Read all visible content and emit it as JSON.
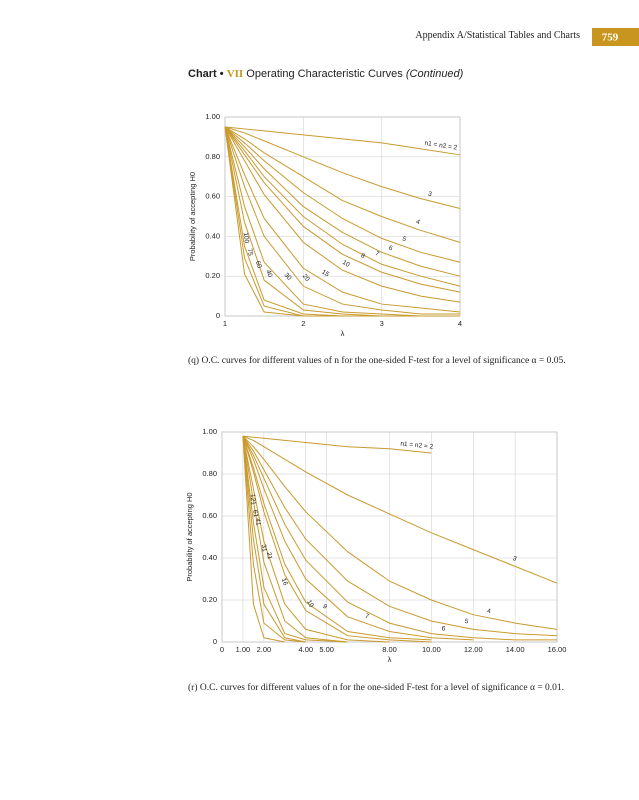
{
  "header": {
    "running_head": "Appendix A/Statistical Tables and Charts",
    "page_number": "759"
  },
  "section_title": {
    "label": "Chart •",
    "number": "VII",
    "title": "Operating Characteristic Curves",
    "note": "(Continued)"
  },
  "chart_data": [
    {
      "type": "line",
      "caption": "(q) O.C. curves for different values of n for the one-sided F-test for a level of significance α = 0.05.",
      "xlabel": "λ",
      "ylabel": "Probability of accepting H0",
      "color": "#c99a2e",
      "grid": true,
      "xlim": [
        1,
        4
      ],
      "ylim": [
        0,
        1
      ],
      "xticks": [
        1,
        2,
        3,
        4
      ],
      "yticks": [
        0,
        {
          "value": 0.2,
          "label": "0.20"
        },
        {
          "value": 0.4,
          "label": "0.40"
        },
        {
          "value": 0.6,
          "label": "0.60"
        },
        {
          "value": 0.8,
          "label": "0.80"
        },
        {
          "value": 1,
          "label": "1.00"
        }
      ],
      "x": [
        1,
        1.25,
        1.5,
        2,
        2.5,
        3,
        3.5,
        4
      ],
      "series": [
        {
          "name": "n1 = n2 = 2",
          "values": [
            0.95,
            0.94,
            0.93,
            0.91,
            0.89,
            0.87,
            0.84,
            0.81
          ]
        },
        {
          "name": "3",
          "values": [
            0.95,
            0.92,
            0.88,
            0.8,
            0.72,
            0.65,
            0.59,
            0.54
          ]
        },
        {
          "name": "4",
          "values": [
            0.95,
            0.89,
            0.82,
            0.7,
            0.58,
            0.5,
            0.43,
            0.37
          ]
        },
        {
          "name": "5",
          "values": [
            0.95,
            0.87,
            0.78,
            0.62,
            0.49,
            0.39,
            0.32,
            0.27
          ]
        },
        {
          "name": "6",
          "values": [
            0.95,
            0.85,
            0.74,
            0.55,
            0.42,
            0.32,
            0.25,
            0.2
          ]
        },
        {
          "name": "7",
          "values": [
            0.95,
            0.83,
            0.7,
            0.5,
            0.36,
            0.26,
            0.2,
            0.15
          ]
        },
        {
          "name": "8",
          "values": [
            0.95,
            0.81,
            0.67,
            0.45,
            0.31,
            0.22,
            0.16,
            0.12
          ]
        },
        {
          "name": "10",
          "values": [
            0.95,
            0.78,
            0.61,
            0.37,
            0.23,
            0.15,
            0.1,
            0.07
          ]
        },
        {
          "name": "15",
          "values": [
            0.95,
            0.71,
            0.49,
            0.24,
            0.12,
            0.06,
            0.04,
            0.02
          ]
        },
        {
          "name": "20",
          "values": [
            0.95,
            0.65,
            0.4,
            0.15,
            0.06,
            0.03,
            0.01,
            0.01
          ]
        },
        {
          "name": "30",
          "values": [
            0.95,
            0.55,
            0.27,
            0.06,
            0.02,
            0.01,
            0,
            0
          ]
        },
        {
          "name": "40",
          "values": [
            0.95,
            0.47,
            0.18,
            0.03,
            0.01,
            0,
            0,
            0
          ]
        },
        {
          "name": "60",
          "values": [
            0.95,
            0.35,
            0.08,
            0.01,
            0,
            0,
            0,
            0
          ]
        },
        {
          "name": "75",
          "values": [
            0.95,
            0.29,
            0.05,
            0,
            0,
            0,
            0,
            0
          ]
        },
        {
          "name": "100",
          "values": [
            0.95,
            0.21,
            0.02,
            0,
            0,
            0,
            0,
            0
          ]
        }
      ]
    },
    {
      "type": "line",
      "caption": "(r) O.C. curves for different values of n for the one-sided F-test for a level of significance α = 0.01.",
      "xlabel": "λ",
      "ylabel": "Probability of accepting H0",
      "color": "#c99a2e",
      "grid": true,
      "xlim": [
        0,
        16
      ],
      "ylim": [
        0,
        1
      ],
      "xticks": [
        0,
        {
          "value": 1,
          "label": "1.00"
        },
        {
          "value": 2,
          "label": "2.00"
        },
        {
          "value": 4,
          "label": "4.00"
        },
        {
          "value": 5,
          "label": "5.00"
        },
        {
          "value": 8,
          "label": "8.00"
        },
        {
          "value": 10,
          "label": "10.00"
        },
        {
          "value": 12,
          "label": "12.00"
        },
        {
          "value": 14,
          "label": "14.00"
        },
        {
          "value": 16,
          "label": "16.00"
        }
      ],
      "yticks": [
        0,
        {
          "value": 0.2,
          "label": "0.20"
        },
        {
          "value": 0.4,
          "label": "0.40"
        },
        {
          "value": 0.6,
          "label": "0.60"
        },
        {
          "value": 0.8,
          "label": "0.80"
        },
        {
          "value": 1,
          "label": "1.00"
        }
      ],
      "x": [
        1,
        1.5,
        2,
        3,
        4,
        6,
        8,
        10,
        12,
        14,
        16
      ],
      "series": [
        {
          "name": "n1 = n2 = 2",
          "values": [
            0.98,
            0.975,
            0.97,
            0.96,
            0.95,
            0.93,
            0.92,
            0.9,
            null,
            null,
            null
          ]
        },
        {
          "name": "3",
          "values": [
            0.98,
            0.96,
            0.93,
            0.87,
            0.81,
            0.7,
            0.61,
            0.52,
            0.44,
            0.36,
            0.28
          ]
        },
        {
          "name": "4",
          "values": [
            0.98,
            0.93,
            0.87,
            0.74,
            0.62,
            0.43,
            0.29,
            0.2,
            0.13,
            0.09,
            0.06
          ]
        },
        {
          "name": "5",
          "values": [
            0.98,
            0.91,
            0.82,
            0.64,
            0.49,
            0.29,
            0.17,
            0.1,
            0.06,
            0.04,
            0.03
          ]
        },
        {
          "name": "6",
          "values": [
            0.98,
            0.89,
            0.78,
            0.56,
            0.39,
            0.19,
            0.09,
            0.04,
            0.02,
            0.01,
            0.01
          ]
        },
        {
          "name": "7",
          "values": [
            0.98,
            0.87,
            0.73,
            0.48,
            0.3,
            0.12,
            0.05,
            0.02,
            0.01,
            null,
            null
          ]
        },
        {
          "name": "9",
          "values": [
            0.98,
            0.83,
            0.66,
            0.37,
            0.19,
            0.05,
            0.02,
            0.01,
            null,
            null,
            null
          ]
        },
        {
          "name": "10",
          "values": [
            0.98,
            0.81,
            0.62,
            0.32,
            0.15,
            0.03,
            0.01,
            0,
            null,
            null,
            null
          ]
        },
        {
          "name": "16",
          "values": [
            0.98,
            0.73,
            0.48,
            0.18,
            0.06,
            0.01,
            0,
            null,
            null,
            null,
            null
          ]
        },
        {
          "name": "21",
          "values": [
            0.98,
            0.67,
            0.38,
            0.1,
            0.02,
            0,
            null,
            null,
            null,
            null,
            null
          ]
        },
        {
          "name": "31",
          "values": [
            0.98,
            0.57,
            0.26,
            0.04,
            0.01,
            0,
            null,
            null,
            null,
            null,
            null
          ]
        },
        {
          "name": "41",
          "values": [
            0.98,
            0.49,
            0.18,
            0.02,
            0,
            null,
            null,
            null,
            null,
            null,
            null
          ]
        },
        {
          "name": "61",
          "values": [
            0.98,
            0.37,
            0.09,
            0.01,
            0,
            null,
            null,
            null,
            null,
            null,
            null
          ]
        },
        {
          "name": "121",
          "values": [
            0.98,
            0.18,
            0.02,
            0,
            null,
            null,
            null,
            null,
            null,
            null,
            null
          ]
        }
      ]
    }
  ]
}
